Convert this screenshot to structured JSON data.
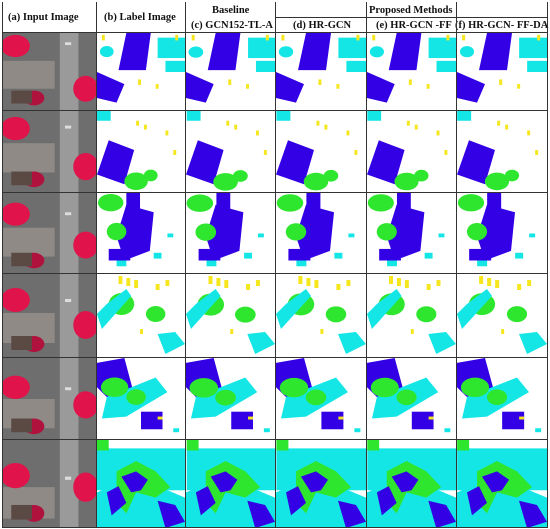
{
  "headers": {
    "input": "(a)  Input Image",
    "label": "(b)  Label Image",
    "baseline_group": "Baseline",
    "baseline": "(c)  GCN152-TL-A",
    "proposed_group": "Proposed Methods",
    "hrgcn": "(d)  HR-GCN",
    "hrgcn_ff": "(e)  HR-GCN -FF",
    "hrgcn_ffda": "(f)  HR-GCN- FF-DA"
  },
  "colors": {
    "building": "#3300e6",
    "vegetation": "#2ee62e",
    "low_vegetation": "#14e6e6",
    "car": "#f5e61e",
    "background": "#ffffff",
    "ir_canopy": "#e0144b",
    "ir_roof": "#8f8a85",
    "ir_road": "#6e6e6e"
  }
}
